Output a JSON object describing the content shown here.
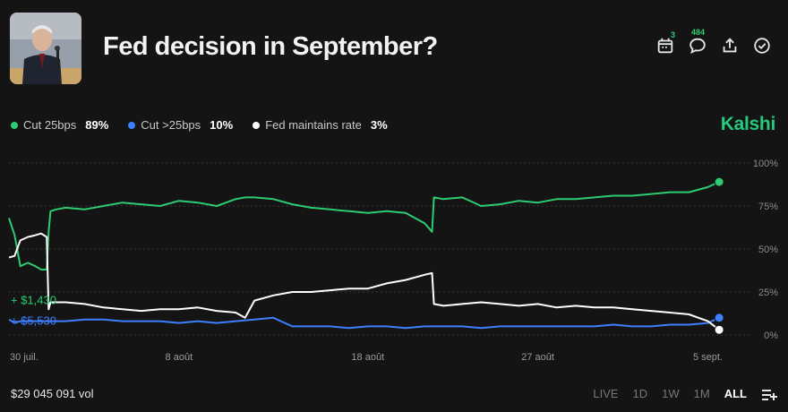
{
  "market": {
    "title": "Fed decision in September?",
    "brand": "Kalshi",
    "thumbnail_alt": "Speaker at hearing"
  },
  "toolbar": {
    "calendar_badge": "3",
    "comments_badge": "484"
  },
  "legend": [
    {
      "label": "Cut 25bps",
      "value": "89%",
      "color": "#2ecc71"
    },
    {
      "label": "Cut >25bps",
      "value": "10%",
      "color": "#3d7fff"
    },
    {
      "label": "Fed maintains rate",
      "value": "3%",
      "color": "#ffffff"
    }
  ],
  "footer": {
    "volume": "$29 045 091 vol",
    "ranges": [
      "LIVE",
      "1D",
      "1W",
      "1M",
      "ALL"
    ],
    "active_range": "ALL"
  },
  "chart_data": {
    "type": "line",
    "ylim": [
      0,
      100
    ],
    "yticks": [
      "100%",
      "75%",
      "50%",
      "25%",
      "0%"
    ],
    "ytick_values": [
      100,
      75,
      50,
      25,
      0
    ],
    "xticks": [
      "30 juil.",
      "8 août",
      "18 août",
      "27 août",
      "5 sept."
    ],
    "xtick_days": [
      0,
      9,
      19,
      28,
      37
    ],
    "x_range": [
      0,
      38.4
    ],
    "annotations": [
      {
        "text": "+ $1,430",
        "color": "#2ecc71",
        "y": 17
      },
      {
        "text": "+ $5,530",
        "color": "#3d7fff",
        "y": 5
      }
    ],
    "series": [
      {
        "name": "Cut 25bps",
        "color": "#2ecc71",
        "endpoint": 89,
        "x": [
          0,
          0.3,
          0.6,
          1,
          1.4,
          1.7,
          2,
          2.1,
          2.2,
          2.5,
          3,
          4,
          5,
          6,
          7,
          8,
          9,
          10,
          11,
          12,
          12.5,
          13,
          14,
          15,
          16,
          17,
          18,
          19,
          20,
          21,
          22,
          22.4,
          22.5,
          23,
          24,
          25,
          26,
          27,
          28,
          29,
          30,
          31,
          32,
          33,
          34,
          35,
          36,
          37,
          37.6
        ],
        "y": [
          68,
          58,
          40,
          42,
          40,
          38,
          38,
          60,
          72,
          73,
          74,
          73,
          75,
          77,
          76,
          75,
          78,
          77,
          75,
          79,
          80,
          80,
          79,
          76,
          74,
          73,
          72,
          71,
          72,
          71,
          65,
          60,
          80,
          79,
          80,
          75,
          76,
          78,
          77,
          79,
          79,
          80,
          81,
          81,
          82,
          83,
          83,
          86,
          89
        ]
      },
      {
        "name": "Cut >25bps",
        "color": "#3d7fff",
        "endpoint": 10,
        "x": [
          0,
          0.3,
          0.6,
          1,
          2,
          3,
          4,
          5,
          6,
          7,
          8,
          9,
          10,
          11,
          12,
          13,
          14,
          15,
          16,
          17,
          18,
          19,
          20,
          21,
          22,
          23,
          24,
          25,
          26,
          27,
          28,
          29,
          30,
          31,
          32,
          33,
          34,
          35,
          36,
          37,
          37.6
        ],
        "y": [
          9,
          7,
          8,
          8,
          8,
          8,
          9,
          9,
          8,
          8,
          8,
          7,
          8,
          7,
          8,
          9,
          10,
          5,
          5,
          5,
          4,
          5,
          5,
          4,
          5,
          5,
          5,
          4,
          5,
          5,
          5,
          5,
          5,
          5,
          6,
          5,
          5,
          6,
          6,
          7,
          10
        ]
      },
      {
        "name": "Fed maintains rate",
        "color": "#ffffff",
        "endpoint": 3,
        "x": [
          0,
          0.3,
          0.6,
          1,
          1.4,
          1.7,
          2,
          2.1,
          2.2,
          2.5,
          3,
          4,
          5,
          6,
          7,
          8,
          9,
          10,
          11,
          12,
          12.5,
          13,
          14,
          15,
          16,
          17,
          18,
          19,
          20,
          21,
          22,
          22.4,
          22.5,
          23,
          24,
          25,
          26,
          27,
          28,
          29,
          30,
          31,
          32,
          33,
          34,
          35,
          36,
          37,
          37.6
        ],
        "y": [
          45,
          46,
          55,
          57,
          58,
          59,
          57,
          15,
          19,
          19,
          19,
          18,
          16,
          15,
          14,
          15,
          15,
          16,
          14,
          13,
          10,
          20,
          23,
          25,
          25,
          26,
          27,
          27,
          30,
          32,
          35,
          36,
          18,
          17,
          18,
          19,
          18,
          17,
          18,
          16,
          17,
          16,
          16,
          15,
          14,
          13,
          12,
          8,
          3
        ]
      }
    ]
  }
}
